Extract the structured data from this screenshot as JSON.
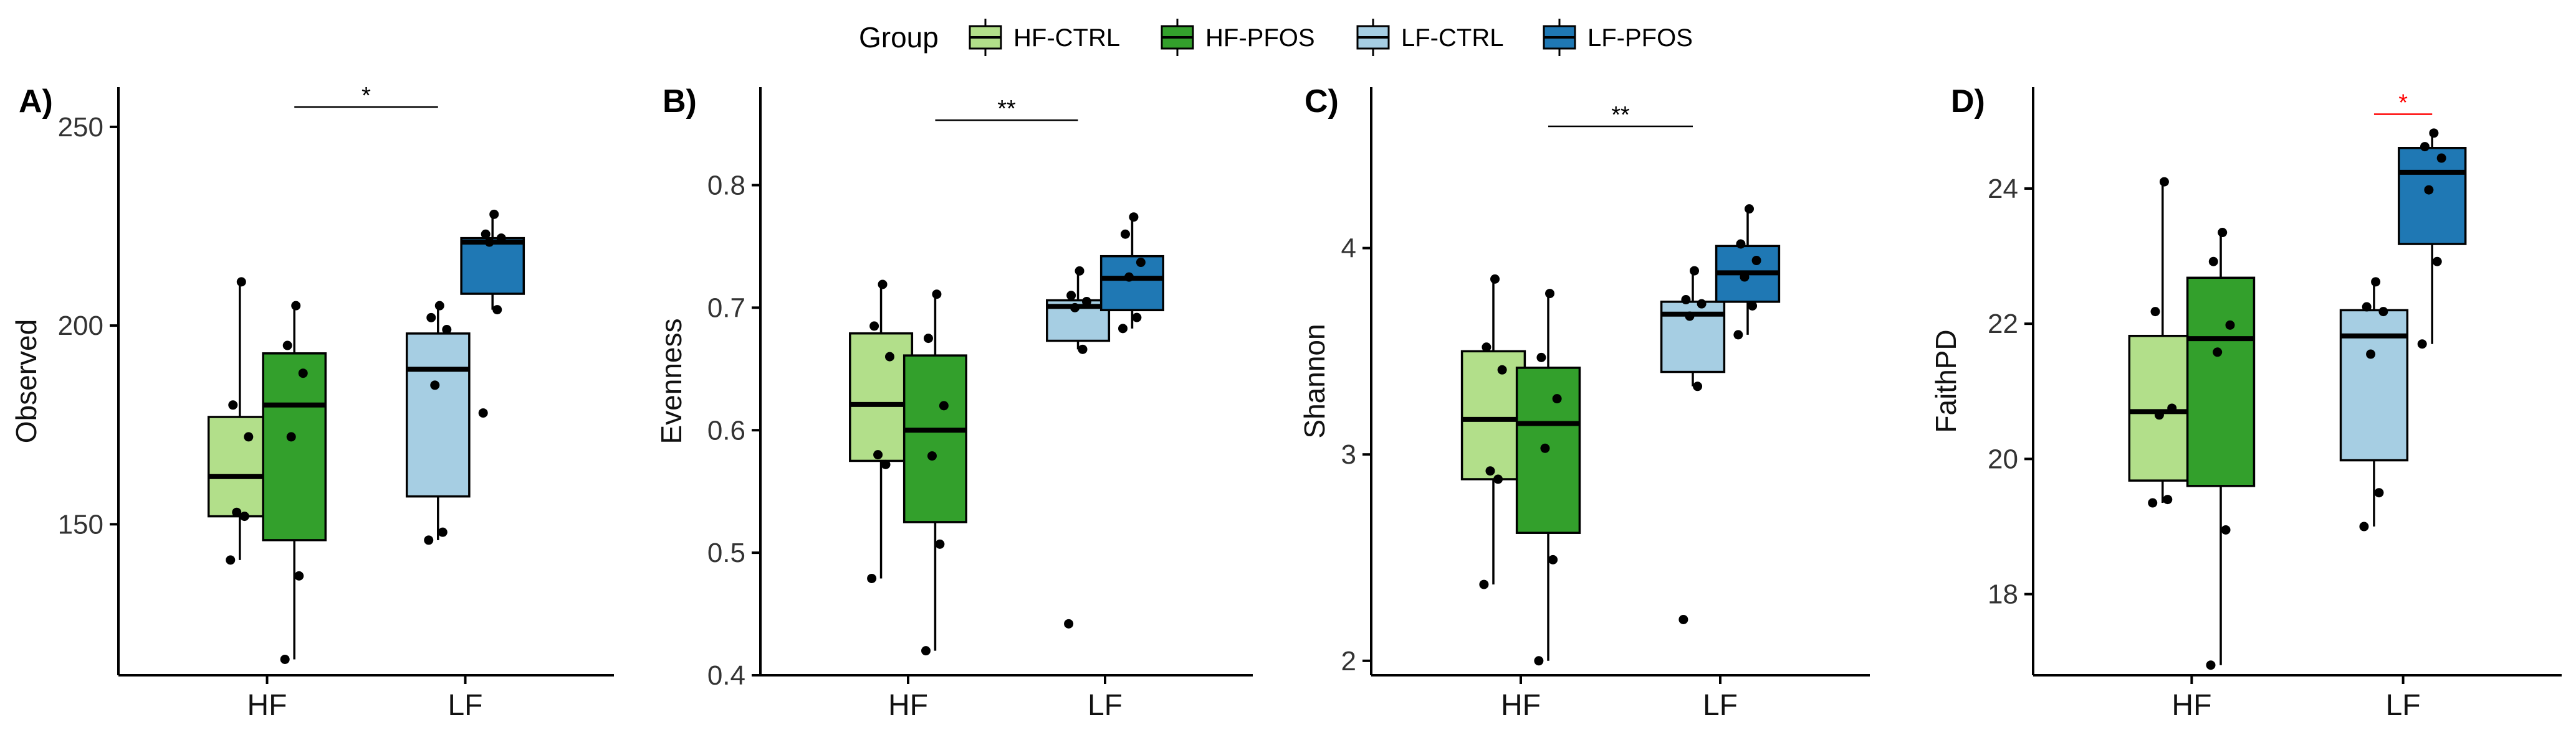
{
  "chart_data": {
    "legend": {
      "title": "Group",
      "placement": "top-center",
      "entries": [
        {
          "key": "HF-CTRL",
          "label": "HF-CTRL",
          "color": "#b2df8a"
        },
        {
          "key": "HF-PFOS",
          "label": "HF-PFOS",
          "color": "#33a02c"
        },
        {
          "key": "LF-CTRL",
          "label": "LF-CTRL",
          "color": "#a6cee3"
        },
        {
          "key": "LF-PFOS",
          "label": "LF-PFOS",
          "color": "#1f78b4"
        }
      ]
    },
    "panels": [
      {
        "type": "box",
        "panel_label": "A)",
        "ylabel": "Observed",
        "ylim": [
          112,
          260
        ],
        "yticks": [
          150,
          200,
          250
        ],
        "categories": [
          "HF",
          "LF"
        ],
        "series": [
          {
            "group": "HF-CTRL",
            "category": "HF",
            "min": 141,
            "q1": 152,
            "median": 162,
            "q3": 177,
            "max": 211,
            "points": [
              141,
              152,
              153,
              172,
              180,
              211
            ]
          },
          {
            "group": "HF-PFOS",
            "category": "HF",
            "min": 116,
            "q1": 146,
            "median": 180,
            "q3": 193,
            "max": 205,
            "points": [
              116,
              137,
              172,
              188,
              195,
              205
            ]
          },
          {
            "group": "LF-CTRL",
            "category": "LF",
            "min": 146,
            "q1": 157,
            "median": 189,
            "q3": 198,
            "max": 205,
            "points": [
              146,
              148,
              185,
              199,
              202,
              205
            ]
          },
          {
            "group": "LF-PFOS",
            "category": "LF",
            "min": 204,
            "q1": 208,
            "median": 221,
            "q3": 222,
            "max": 228,
            "outliers": [
              178
            ],
            "points": [
              178,
              204,
              221,
              222,
              223,
              228
            ]
          }
        ],
        "significance": [
          {
            "label": "*",
            "y": 255,
            "from": "HF-PFOS",
            "to": "LF-CTRL",
            "color": "#000000"
          }
        ]
      },
      {
        "type": "box",
        "panel_label": "B)",
        "ylabel": "Evenness",
        "ylim": [
          0.4,
          0.88
        ],
        "yticks": [
          0.4,
          0.5,
          0.6,
          0.7,
          0.8
        ],
        "ytick_labels": [
          "0.4",
          "0.5",
          "0.6",
          "0.7",
          "0.8"
        ],
        "categories": [
          "HF",
          "LF"
        ],
        "series": [
          {
            "group": "HF-CTRL",
            "category": "HF",
            "min": 0.479,
            "q1": 0.575,
            "median": 0.621,
            "q3": 0.679,
            "max": 0.719,
            "points": [
              0.479,
              0.572,
              0.58,
              0.66,
              0.685,
              0.719
            ]
          },
          {
            "group": "HF-PFOS",
            "category": "HF",
            "min": 0.42,
            "q1": 0.525,
            "median": 0.6,
            "q3": 0.661,
            "max": 0.711,
            "points": [
              0.42,
              0.507,
              0.579,
              0.62,
              0.675,
              0.711
            ]
          },
          {
            "group": "LF-CTRL",
            "category": "LF",
            "min": 0.666,
            "q1": 0.673,
            "median": 0.701,
            "q3": 0.706,
            "max": 0.73,
            "outliers": [
              0.442
            ],
            "points": [
              0.442,
              0.666,
              0.7,
              0.705,
              0.71,
              0.73
            ]
          },
          {
            "group": "LF-PFOS",
            "category": "LF",
            "min": 0.683,
            "q1": 0.698,
            "median": 0.724,
            "q3": 0.742,
            "max": 0.774,
            "points": [
              0.683,
              0.692,
              0.725,
              0.737,
              0.76,
              0.774
            ]
          }
        ],
        "significance": [
          {
            "label": "**",
            "y": 0.853,
            "from": "HF-PFOS",
            "to": "LF-CTRL",
            "color": "#000000"
          }
        ]
      },
      {
        "type": "box",
        "panel_label": "C)",
        "ylabel": "Shannon",
        "ylim": [
          1.93,
          4.78
        ],
        "yticks": [
          2,
          3,
          4
        ],
        "categories": [
          "HF",
          "LF"
        ],
        "series": [
          {
            "group": "HF-CTRL",
            "category": "HF",
            "min": 2.37,
            "q1": 2.88,
            "median": 3.17,
            "q3": 3.5,
            "max": 3.85,
            "points": [
              2.37,
              2.88,
              2.92,
              3.41,
              3.52,
              3.85
            ]
          },
          {
            "group": "HF-PFOS",
            "category": "HF",
            "min": 2.0,
            "q1": 2.62,
            "median": 3.15,
            "q3": 3.42,
            "max": 3.78,
            "points": [
              2.0,
              2.49,
              3.03,
              3.27,
              3.47,
              3.78
            ]
          },
          {
            "group": "LF-CTRL",
            "category": "LF",
            "min": 3.33,
            "q1": 3.4,
            "median": 3.68,
            "q3": 3.74,
            "max": 3.89,
            "outliers": [
              2.2
            ],
            "points": [
              2.2,
              3.33,
              3.67,
              3.73,
              3.75,
              3.89
            ]
          },
          {
            "group": "LF-PFOS",
            "category": "LF",
            "min": 3.58,
            "q1": 3.74,
            "median": 3.88,
            "q3": 4.01,
            "max": 4.19,
            "points": [
              3.58,
              3.72,
              3.86,
              3.94,
              4.02,
              4.19
            ]
          }
        ],
        "significance": [
          {
            "label": "**",
            "y": 4.59,
            "from": "HF-PFOS",
            "to": "LF-CTRL",
            "color": "#000000"
          }
        ]
      },
      {
        "type": "box",
        "panel_label": "D)",
        "ylabel": "FaithPD",
        "ylim": [
          16.8,
          25.5
        ],
        "yticks": [
          18,
          20,
          22,
          24
        ],
        "categories": [
          "HF",
          "LF"
        ],
        "series": [
          {
            "group": "HF-CTRL",
            "category": "HF",
            "min": 19.35,
            "q1": 19.68,
            "median": 20.7,
            "q3": 21.82,
            "max": 24.1,
            "points": [
              19.35,
              19.4,
              20.65,
              20.75,
              22.18,
              24.1
            ]
          },
          {
            "group": "HF-PFOS",
            "category": "HF",
            "min": 16.95,
            "q1": 19.6,
            "median": 21.78,
            "q3": 22.68,
            "max": 23.35,
            "points": [
              16.95,
              18.95,
              21.58,
              21.98,
              22.92,
              23.35
            ]
          },
          {
            "group": "LF-CTRL",
            "category": "LF",
            "min": 19.0,
            "q1": 19.98,
            "median": 21.82,
            "q3": 22.2,
            "max": 22.62,
            "points": [
              19.0,
              19.5,
              21.55,
              22.18,
              22.25,
              22.62
            ]
          },
          {
            "group": "LF-PFOS",
            "category": "LF",
            "min": 21.7,
            "q1": 23.18,
            "median": 24.24,
            "q3": 24.6,
            "max": 24.82,
            "points": [
              21.7,
              22.92,
              23.98,
              24.45,
              24.62,
              24.82
            ]
          }
        ],
        "significance": [
          {
            "label": "*",
            "y": 25.1,
            "from": "LF-CTRL",
            "to": "LF-PFOS",
            "color": "#ff0000"
          }
        ]
      }
    ]
  }
}
